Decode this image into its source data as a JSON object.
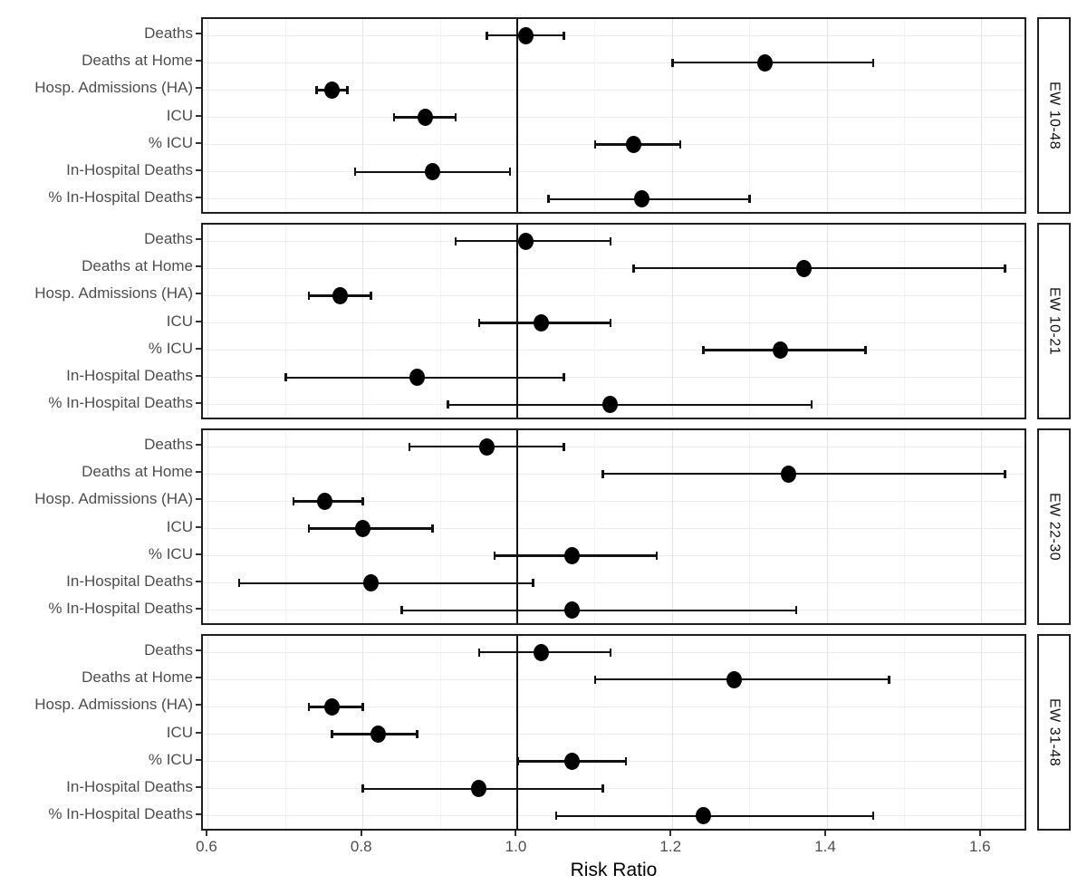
{
  "chart_data": {
    "type": "scatter",
    "subtype": "forest-plot-dot-with-ci",
    "title": "",
    "xlabel": "Risk Ratio",
    "xlim": [
      0.593,
      1.66
    ],
    "x_major_ticks": [
      0.6,
      0.8,
      1.0,
      1.2,
      1.4,
      1.6
    ],
    "x_major_tick_labels": [
      "0.6",
      "0.8",
      "1.0",
      "1.2",
      "1.4",
      "1.6"
    ],
    "x_minor_ticks": [
      0.7,
      0.9,
      1.1,
      1.3,
      1.5
    ],
    "reference_line_x": 1.0,
    "grid": "on",
    "legend": "none",
    "categories": [
      "Deaths",
      "Deaths at Home",
      "Hosp. Admissions (HA)",
      "ICU",
      "% ICU",
      "In-Hospital Deaths",
      "% In-Hospital Deaths"
    ],
    "panels": [
      {
        "label": "EW 10-48",
        "estimates": [
          1.01,
          1.32,
          0.76,
          0.88,
          1.15,
          0.89,
          1.16
        ],
        "ci_low": [
          0.96,
          1.2,
          0.74,
          0.84,
          1.1,
          0.79,
          1.04
        ],
        "ci_high": [
          1.06,
          1.46,
          0.78,
          0.92,
          1.21,
          0.99,
          1.3
        ]
      },
      {
        "label": "EW 10-21",
        "estimates": [
          1.01,
          1.37,
          0.77,
          1.03,
          1.34,
          0.87,
          1.12
        ],
        "ci_low": [
          0.92,
          1.15,
          0.73,
          0.95,
          1.24,
          0.7,
          0.91
        ],
        "ci_high": [
          1.12,
          1.63,
          0.81,
          1.12,
          1.45,
          1.06,
          1.38
        ]
      },
      {
        "label": "EW 22-30",
        "estimates": [
          0.96,
          1.35,
          0.75,
          0.8,
          1.07,
          0.81,
          1.07
        ],
        "ci_low": [
          0.86,
          1.11,
          0.71,
          0.73,
          0.97,
          0.64,
          0.85
        ],
        "ci_high": [
          1.06,
          1.63,
          0.8,
          0.89,
          1.18,
          1.02,
          1.36
        ]
      },
      {
        "label": "EW 31-48",
        "estimates": [
          1.03,
          1.28,
          0.76,
          0.82,
          1.07,
          0.95,
          1.24
        ],
        "ci_low": [
          0.95,
          1.1,
          0.73,
          0.76,
          1.0,
          0.8,
          1.05
        ],
        "ci_high": [
          1.12,
          1.48,
          0.8,
          0.87,
          1.14,
          1.11,
          1.46
        ]
      }
    ]
  },
  "colors": {
    "point": "#000000",
    "ci": "#111111",
    "reference_line": "#111111",
    "panel_border": "#1f1f1f",
    "axis_text": "#4d4d4d",
    "grid_major": "#e4e4e4",
    "grid_minor": "#f3f3f3",
    "background": "#ffffff"
  }
}
